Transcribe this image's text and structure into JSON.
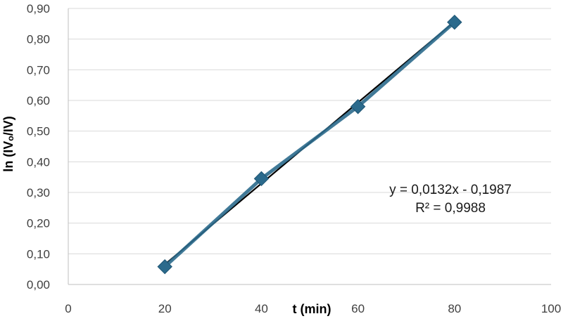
{
  "chart_data": {
    "type": "scatter",
    "xlabel": "t (min)",
    "ylabel": "ln (IVₒ/IV)",
    "xlim": [
      0,
      100
    ],
    "ylim": [
      0,
      0.9
    ],
    "x_ticks": [
      "0",
      "20",
      "40",
      "60",
      "80",
      "100"
    ],
    "y_ticks": [
      "0,00",
      "0,10",
      "0,20",
      "0,30",
      "0,40",
      "0,50",
      "0,60",
      "0,70",
      "0,80",
      "0,90"
    ],
    "grid": true,
    "series": [
      {
        "x": [
          20,
          40,
          60,
          80
        ],
        "y": [
          0.058,
          0.345,
          0.58,
          0.855
        ],
        "color": "#2b6a8c",
        "marker": "diamond",
        "connected": true
      }
    ],
    "trendline": {
      "type": "linear",
      "slope": 0.0132,
      "intercept": -0.1987,
      "x_range": [
        20,
        80
      ],
      "color": "#000000",
      "equation": "y = 0,0132x - 0,1987",
      "r_squared": "R² = 0,9988"
    }
  }
}
